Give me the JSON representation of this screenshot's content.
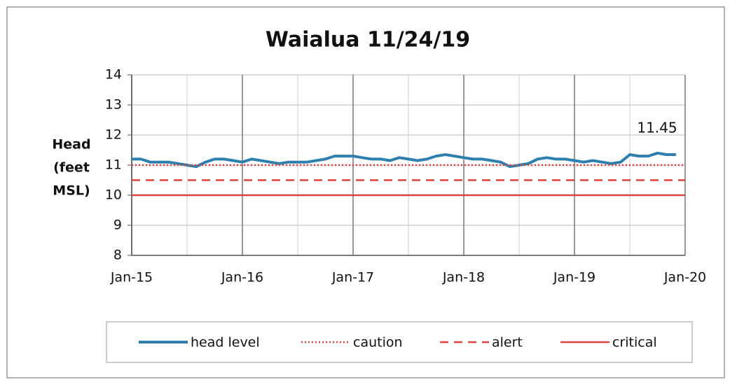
{
  "chart_data": {
    "type": "line",
    "title": "Waialua 11/24/19",
    "y_label": [
      "Head",
      "(feet",
      "MSL)"
    ],
    "annotation": "11.45",
    "xlim": [
      2015,
      2020
    ],
    "xticks": [
      {
        "value": 2015,
        "label": "Jan-15"
      },
      {
        "value": 2016,
        "label": "Jan-16"
      },
      {
        "value": 2017,
        "label": "Jan-17"
      },
      {
        "value": 2018,
        "label": "Jan-18"
      },
      {
        "value": 2019,
        "label": "Jan-19"
      },
      {
        "value": 2020,
        "label": "Jan-20"
      }
    ],
    "x_minor_grid": [
      2015.5,
      2016.5,
      2017.5,
      2018.5,
      2019.5
    ],
    "ylim": [
      8,
      14
    ],
    "yticks": [
      8,
      9,
      10,
      11,
      12,
      13,
      14
    ],
    "grid": true,
    "series": [
      {
        "name": "head level",
        "color": "#2e7fae",
        "style": "solid",
        "x": [
          2015.0,
          2015.083,
          2015.167,
          2015.25,
          2015.333,
          2015.417,
          2015.5,
          2015.583,
          2015.667,
          2015.75,
          2015.833,
          2015.917,
          2016.0,
          2016.083,
          2016.167,
          2016.25,
          2016.333,
          2016.417,
          2016.5,
          2016.583,
          2016.667,
          2016.75,
          2016.833,
          2016.917,
          2017.0,
          2017.083,
          2017.167,
          2017.25,
          2017.333,
          2017.417,
          2017.5,
          2017.583,
          2017.667,
          2017.75,
          2017.833,
          2017.917,
          2018.0,
          2018.083,
          2018.167,
          2018.25,
          2018.333,
          2018.417,
          2018.5,
          2018.583,
          2018.667,
          2018.75,
          2018.833,
          2018.917,
          2019.0,
          2019.083,
          2019.167,
          2019.25,
          2019.333,
          2019.417,
          2019.5,
          2019.583,
          2019.667,
          2019.75,
          2019.833,
          2019.917
        ],
        "values": [
          11.2,
          11.2,
          11.1,
          11.1,
          11.1,
          11.05,
          11.0,
          10.95,
          11.1,
          11.2,
          11.2,
          11.15,
          11.1,
          11.2,
          11.15,
          11.1,
          11.05,
          11.1,
          11.1,
          11.1,
          11.15,
          11.2,
          11.3,
          11.3,
          11.3,
          11.25,
          11.2,
          11.2,
          11.15,
          11.25,
          11.2,
          11.15,
          11.2,
          11.3,
          11.35,
          11.3,
          11.25,
          11.2,
          11.2,
          11.15,
          11.1,
          10.95,
          11.0,
          11.05,
          11.2,
          11.25,
          11.2,
          11.2,
          11.15,
          11.1,
          11.15,
          11.1,
          11.05,
          11.1,
          11.35,
          11.3,
          11.3,
          11.4,
          11.35,
          11.35
        ]
      },
      {
        "name": "caution",
        "color": "#e0403a",
        "style": "dotted",
        "x": [
          2015,
          2020
        ],
        "values": [
          11,
          11
        ]
      },
      {
        "name": "alert",
        "color": "#e0403a",
        "style": "dashed",
        "x": [
          2015,
          2020
        ],
        "values": [
          10.5,
          10.5
        ]
      },
      {
        "name": "critical",
        "color": "#e0403a",
        "style": "solid",
        "x": [
          2015,
          2020
        ],
        "values": [
          10,
          10
        ]
      }
    ]
  }
}
